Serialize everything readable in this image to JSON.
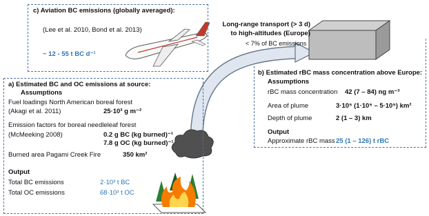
{
  "box_c": {
    "title": "c) Aviation BC emissions (globally averaged):",
    "reference": "(Lee et al. 2010, Bond et al. 2013)",
    "value": "~ 12 - 55 t BC d⁻¹"
  },
  "transport": {
    "line1": "Long-range transport (> 3 d)",
    "line2": "to high-altitudes (Europe)",
    "line3": "< 7% of BC emissions"
  },
  "box_b": {
    "title": "b) Estimated rBC mass concentration above Europe:",
    "assumptions_heading": "Assumptions",
    "assumptions": [
      {
        "label": "rBC mass concentration",
        "value": "42 (7 – 84) ng m⁻³"
      },
      {
        "label": "Area of plume",
        "value": "3·10⁵ (1·10⁵ – 5·10⁵) km²"
      },
      {
        "label": "Depth of plume",
        "value": "2 (1 – 3) km"
      }
    ],
    "output_heading": "Output",
    "outputs": [
      {
        "label": "Approximate rBC mass",
        "value": "25 (1 – 126) t rBC"
      }
    ]
  },
  "box_a": {
    "title": "a) Estimated BC and OC emissions at source:",
    "assumptions_heading": "Assumptions",
    "fuel_label": "Fuel loadings North American boreal forest",
    "fuel_reference": "(Akagi et al. 2011)",
    "fuel_value": "25·10³ g m⁻²",
    "ef_label": "Emission factors for boreal needleleaf forest",
    "ef_reference": "(McMeeking 2008)",
    "ef_bc": "0.2 g BC (kg burned)⁻¹",
    "ef_oc": "7.8 g OC (kg burned)⁻¹",
    "area_label": "Burned area Pagami Creek Fire",
    "area_value": "350 km²",
    "output_heading": "Output",
    "outputs": [
      {
        "label": "Total BC emissions",
        "value": "2·10³ t BC"
      },
      {
        "label": "Total OC emissions",
        "value": "68·10³ t OC"
      }
    ]
  }
}
